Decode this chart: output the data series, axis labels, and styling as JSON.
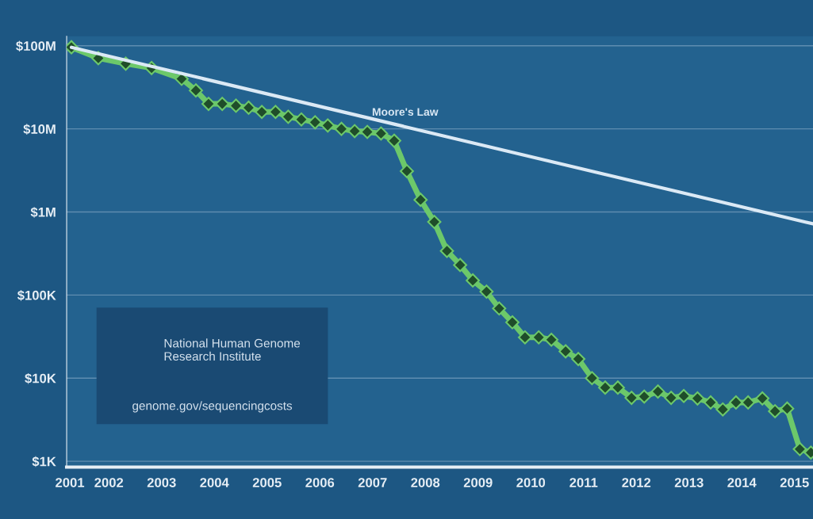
{
  "chart_data": {
    "type": "line",
    "log": "y",
    "ylim": [
      850,
      130000000
    ],
    "yticks": [
      {
        "value": 1000,
        "label": "$1K"
      },
      {
        "value": 10000,
        "label": "$10K"
      },
      {
        "value": 100000,
        "label": "$100K"
      },
      {
        "value": 1000000,
        "label": "$1M"
      },
      {
        "value": 10000000,
        "label": "$10M"
      },
      {
        "value": 100000000,
        "label": "$100M"
      }
    ],
    "xlim": [
      2001.2,
      2015.35
    ],
    "xticks": [
      {
        "value": 2001.26,
        "label": "2001"
      },
      2002,
      2003,
      2004,
      2005,
      2006,
      2007,
      2008,
      2009,
      2010,
      2011,
      2012,
      2013,
      2014,
      2015
    ],
    "grid": "y",
    "series": [
      {
        "color": "#6cc86a",
        "marker": "diamond",
        "x": [
          2001.29,
          2001.8,
          2002.32,
          2002.81,
          2003.38,
          2003.65,
          2003.89,
          2004.15,
          2004.41,
          2004.65,
          2004.9,
          2005.16,
          2005.4,
          2005.65,
          2005.91,
          2006.15,
          2006.41,
          2006.66,
          2006.9,
          2007.16,
          2007.41,
          2007.65,
          2007.91,
          2008.17,
          2008.41,
          2008.66,
          2008.9,
          2009.16,
          2009.4,
          2009.65,
          2009.89,
          2010.15,
          2010.39,
          2010.66,
          2010.9,
          2011.16,
          2011.41,
          2011.65,
          2011.91,
          2012.15,
          2012.41,
          2012.66,
          2012.9,
          2013.16,
          2013.41,
          2013.64,
          2013.89,
          2014.12,
          2014.39,
          2014.63,
          2014.86,
          2015.1,
          2015.31
        ],
        "values": [
          96000000,
          71000000,
          61000000,
          54000000,
          40000000,
          29000000,
          20000000,
          20000000,
          19000000,
          18000000,
          16000000,
          16000000,
          14000000,
          13000000,
          12000000,
          11000000,
          10000000,
          9400000,
          9200000,
          8800000,
          7200000,
          3100000,
          1400000,
          760000,
          340000,
          230000,
          150000,
          110000,
          69000,
          47000,
          31000,
          31000,
          29000,
          21000,
          17000,
          10000,
          7700,
          7700,
          5800,
          6000,
          6900,
          5800,
          6100,
          5700,
          5100,
          4200,
          5100,
          5100,
          5700,
          4000,
          4300,
          1400,
          1270
        ]
      },
      {
        "name": "Moore's Law",
        "color": "#dbe9f5",
        "marker": "none",
        "x": [
          2001.29,
          2015.35
        ],
        "values": [
          96000000,
          720000
        ]
      }
    ],
    "annotations": [
      "National Human Genome\nResearch Institute",
      "genome.gov/sequencingcosts"
    ]
  }
}
